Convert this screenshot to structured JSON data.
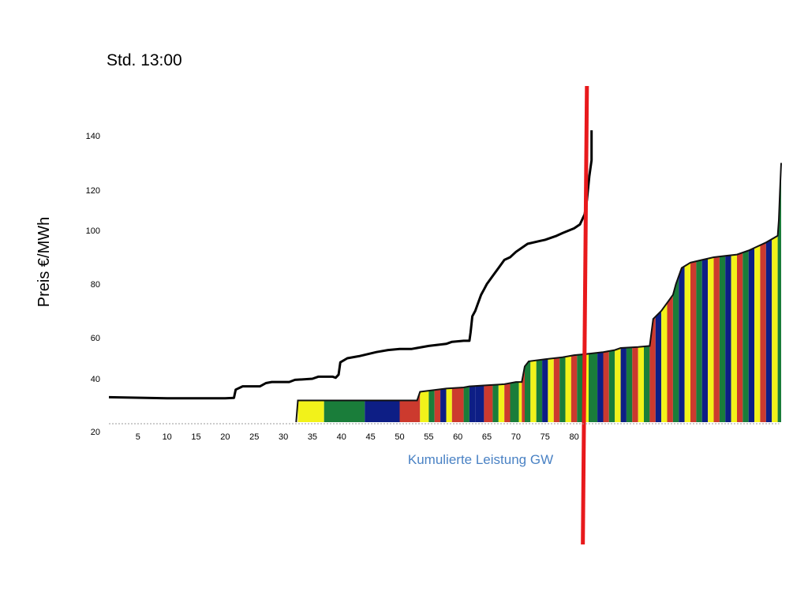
{
  "chart_data": {
    "type": "area",
    "title": "Std. 13:00",
    "xlabel": "Kumulierte Leistung GW",
    "ylabel": "Preis €/MWh",
    "x_ticks": [
      5,
      10,
      15,
      20,
      25,
      30,
      35,
      40,
      45,
      50,
      55,
      60,
      65,
      70,
      75,
      80
    ],
    "y_ticks": [
      20,
      40,
      60,
      80,
      100,
      120,
      140
    ],
    "xlim": [
      0,
      115
    ],
    "ylim": [
      20,
      140
    ],
    "colors": {
      "yellow": "#f2f21a",
      "green": "#1a7d3a",
      "blue": "#0d1e85",
      "red": "#cc3a2e",
      "demand_line": "#000000",
      "marker_line": "#e8191c"
    },
    "series": [
      {
        "name": "",
        "kind": "demand_curve",
        "points": [
          [
            0,
            31.5
          ],
          [
            10,
            31
          ],
          [
            20,
            31
          ],
          [
            21.5,
            31.2
          ],
          [
            21.8,
            35
          ],
          [
            23,
            36.5
          ],
          [
            26,
            36.5
          ],
          [
            27,
            38
          ],
          [
            28,
            38.5
          ],
          [
            31,
            38.5
          ],
          [
            32,
            39.5
          ],
          [
            35,
            40
          ],
          [
            36,
            41
          ],
          [
            38.5,
            41
          ],
          [
            39,
            40.5
          ],
          [
            39.5,
            42
          ],
          [
            39.8,
            48
          ],
          [
            41,
            50
          ],
          [
            43,
            51
          ],
          [
            46,
            53
          ],
          [
            48,
            54
          ],
          [
            50,
            54.5
          ],
          [
            52,
            54.5
          ],
          [
            53,
            55
          ],
          [
            55,
            56
          ],
          [
            58,
            57
          ],
          [
            59,
            58
          ],
          [
            61,
            58.5
          ],
          [
            62,
            58.5
          ],
          [
            62.2,
            62
          ],
          [
            62.5,
            68
          ],
          [
            63,
            70
          ],
          [
            63.5,
            73
          ],
          [
            64,
            76
          ],
          [
            64.5,
            78
          ],
          [
            65,
            80
          ],
          [
            66,
            83
          ],
          [
            67,
            86
          ],
          [
            68,
            89
          ],
          [
            69,
            90
          ],
          [
            70,
            92
          ],
          [
            72,
            95
          ],
          [
            74,
            96
          ],
          [
            75,
            96.5
          ],
          [
            77,
            98
          ],
          [
            78,
            99
          ],
          [
            80,
            101
          ],
          [
            81,
            103
          ],
          [
            81.8,
            108
          ],
          [
            82.2,
            115
          ],
          [
            82.6,
            125
          ],
          [
            83,
            131
          ],
          [
            83,
            142
          ]
        ]
      },
      {
        "name": "",
        "kind": "supply_curve",
        "points": [
          [
            32.2,
            20
          ],
          [
            32.5,
            30
          ],
          [
            37,
            30
          ],
          [
            47,
            30
          ],
          [
            53,
            30
          ],
          [
            53.5,
            34
          ],
          [
            55,
            34.5
          ],
          [
            58,
            35.5
          ],
          [
            61,
            36
          ],
          [
            62,
            36.5
          ],
          [
            65,
            37
          ],
          [
            68,
            37.5
          ],
          [
            70,
            38.5
          ],
          [
            71,
            38.5
          ],
          [
            71.5,
            46
          ],
          [
            72.2,
            48.5
          ],
          [
            75,
            49.5
          ],
          [
            78,
            50.5
          ],
          [
            80,
            51.5
          ],
          [
            82,
            52
          ],
          [
            85,
            53
          ],
          [
            87,
            54
          ],
          [
            88,
            55
          ],
          [
            91,
            55.5
          ],
          [
            93,
            56
          ],
          [
            93.3,
            62
          ],
          [
            93.6,
            67
          ],
          [
            95,
            70
          ],
          [
            97,
            76
          ],
          [
            97.5,
            80
          ],
          [
            98.5,
            86
          ],
          [
            100,
            88
          ],
          [
            102,
            89
          ],
          [
            104,
            90
          ],
          [
            106,
            90.5
          ],
          [
            108,
            91
          ],
          [
            110,
            92.5
          ],
          [
            113,
            95.5
          ],
          [
            115,
            98
          ],
          [
            115.2,
            105
          ],
          [
            115.4,
            120
          ],
          [
            115.6,
            130
          ]
        ],
        "segments": [
          [
            32.5,
            37,
            "yellow"
          ],
          [
            37,
            44,
            "green"
          ],
          [
            44,
            50,
            "blue"
          ],
          [
            50,
            53.5,
            "red"
          ],
          [
            53.5,
            55,
            "yellow"
          ],
          [
            55,
            56,
            "green"
          ],
          [
            56,
            57,
            "red"
          ],
          [
            57,
            58,
            "blue"
          ],
          [
            58,
            59,
            "yellow"
          ],
          [
            59,
            61,
            "red"
          ],
          [
            61,
            62,
            "green"
          ],
          [
            62,
            63,
            "blue"
          ],
          [
            63,
            64.5,
            "blue"
          ],
          [
            64.5,
            66,
            "red"
          ],
          [
            66,
            67,
            "green"
          ],
          [
            67,
            68,
            "yellow"
          ],
          [
            68,
            69,
            "red"
          ],
          [
            69,
            70.5,
            "green"
          ],
          [
            70.5,
            71,
            "yellow"
          ],
          [
            71,
            71.5,
            "red"
          ],
          [
            71.5,
            72.5,
            "green"
          ],
          [
            72.5,
            73.5,
            "yellow"
          ],
          [
            73.5,
            74.5,
            "green"
          ],
          [
            74.5,
            75.5,
            "blue"
          ],
          [
            75.5,
            76.5,
            "yellow"
          ],
          [
            76.5,
            77.5,
            "red"
          ],
          [
            77.5,
            78.5,
            "green"
          ],
          [
            78.5,
            79.5,
            "yellow"
          ],
          [
            79.5,
            80.5,
            "red"
          ],
          [
            80.5,
            81.5,
            "green"
          ],
          [
            81.5,
            82.5,
            "yellow"
          ],
          [
            82.5,
            84,
            "green"
          ],
          [
            84,
            85,
            "blue"
          ],
          [
            85,
            86,
            "red"
          ],
          [
            86,
            87,
            "green"
          ],
          [
            87,
            88,
            "yellow"
          ],
          [
            88,
            89,
            "blue"
          ],
          [
            89,
            90,
            "green"
          ],
          [
            90,
            91,
            "red"
          ],
          [
            91,
            92,
            "yellow"
          ],
          [
            92,
            93,
            "green"
          ],
          [
            93,
            94,
            "red"
          ],
          [
            94,
            95,
            "blue"
          ],
          [
            95,
            96,
            "yellow"
          ],
          [
            96,
            97,
            "red"
          ],
          [
            97,
            98,
            "green"
          ],
          [
            98,
            99,
            "blue"
          ],
          [
            99,
            100,
            "yellow"
          ],
          [
            100,
            101,
            "red"
          ],
          [
            101,
            102,
            "green"
          ],
          [
            102,
            103,
            "blue"
          ],
          [
            103,
            104,
            "yellow"
          ],
          [
            104,
            105,
            "red"
          ],
          [
            105,
            106,
            "green"
          ],
          [
            106,
            107,
            "blue"
          ],
          [
            107,
            108,
            "yellow"
          ],
          [
            108,
            109,
            "red"
          ],
          [
            109,
            110,
            "green"
          ],
          [
            110,
            111,
            "blue"
          ],
          [
            111,
            112,
            "yellow"
          ],
          [
            112,
            113,
            "red"
          ],
          [
            113,
            114,
            "blue"
          ],
          [
            114,
            115,
            "yellow"
          ],
          [
            115,
            115.6,
            "green"
          ]
        ]
      }
    ],
    "marker_line": {
      "x_top": 82.2,
      "x_bottom": 81.5
    },
    "legend": "none",
    "grid": false
  }
}
